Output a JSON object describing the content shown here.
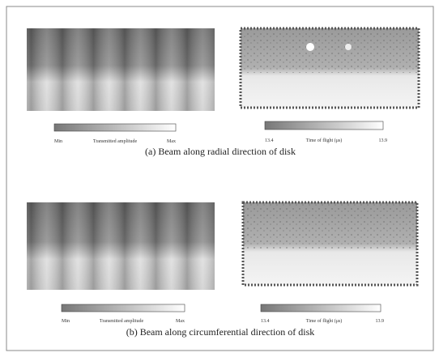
{
  "panels": [
    {
      "caption": "(a) Beam along radial direction of disk",
      "scans": [
        {
          "min_label": "Min",
          "title": "Transmitted amplitude",
          "max_label": "Max"
        },
        {
          "min_label": "13.4",
          "title": "Time of flight (μs)",
          "max_label": "13.9"
        }
      ]
    },
    {
      "caption": "(b) Beam along circumferential direction of disk",
      "scans": [
        {
          "min_label": "Min",
          "title": "Transmitted amplitude",
          "max_label": "Max"
        },
        {
          "min_label": "13.4",
          "title": "Time of flight (μs)",
          "max_label": "13.9"
        }
      ]
    }
  ]
}
